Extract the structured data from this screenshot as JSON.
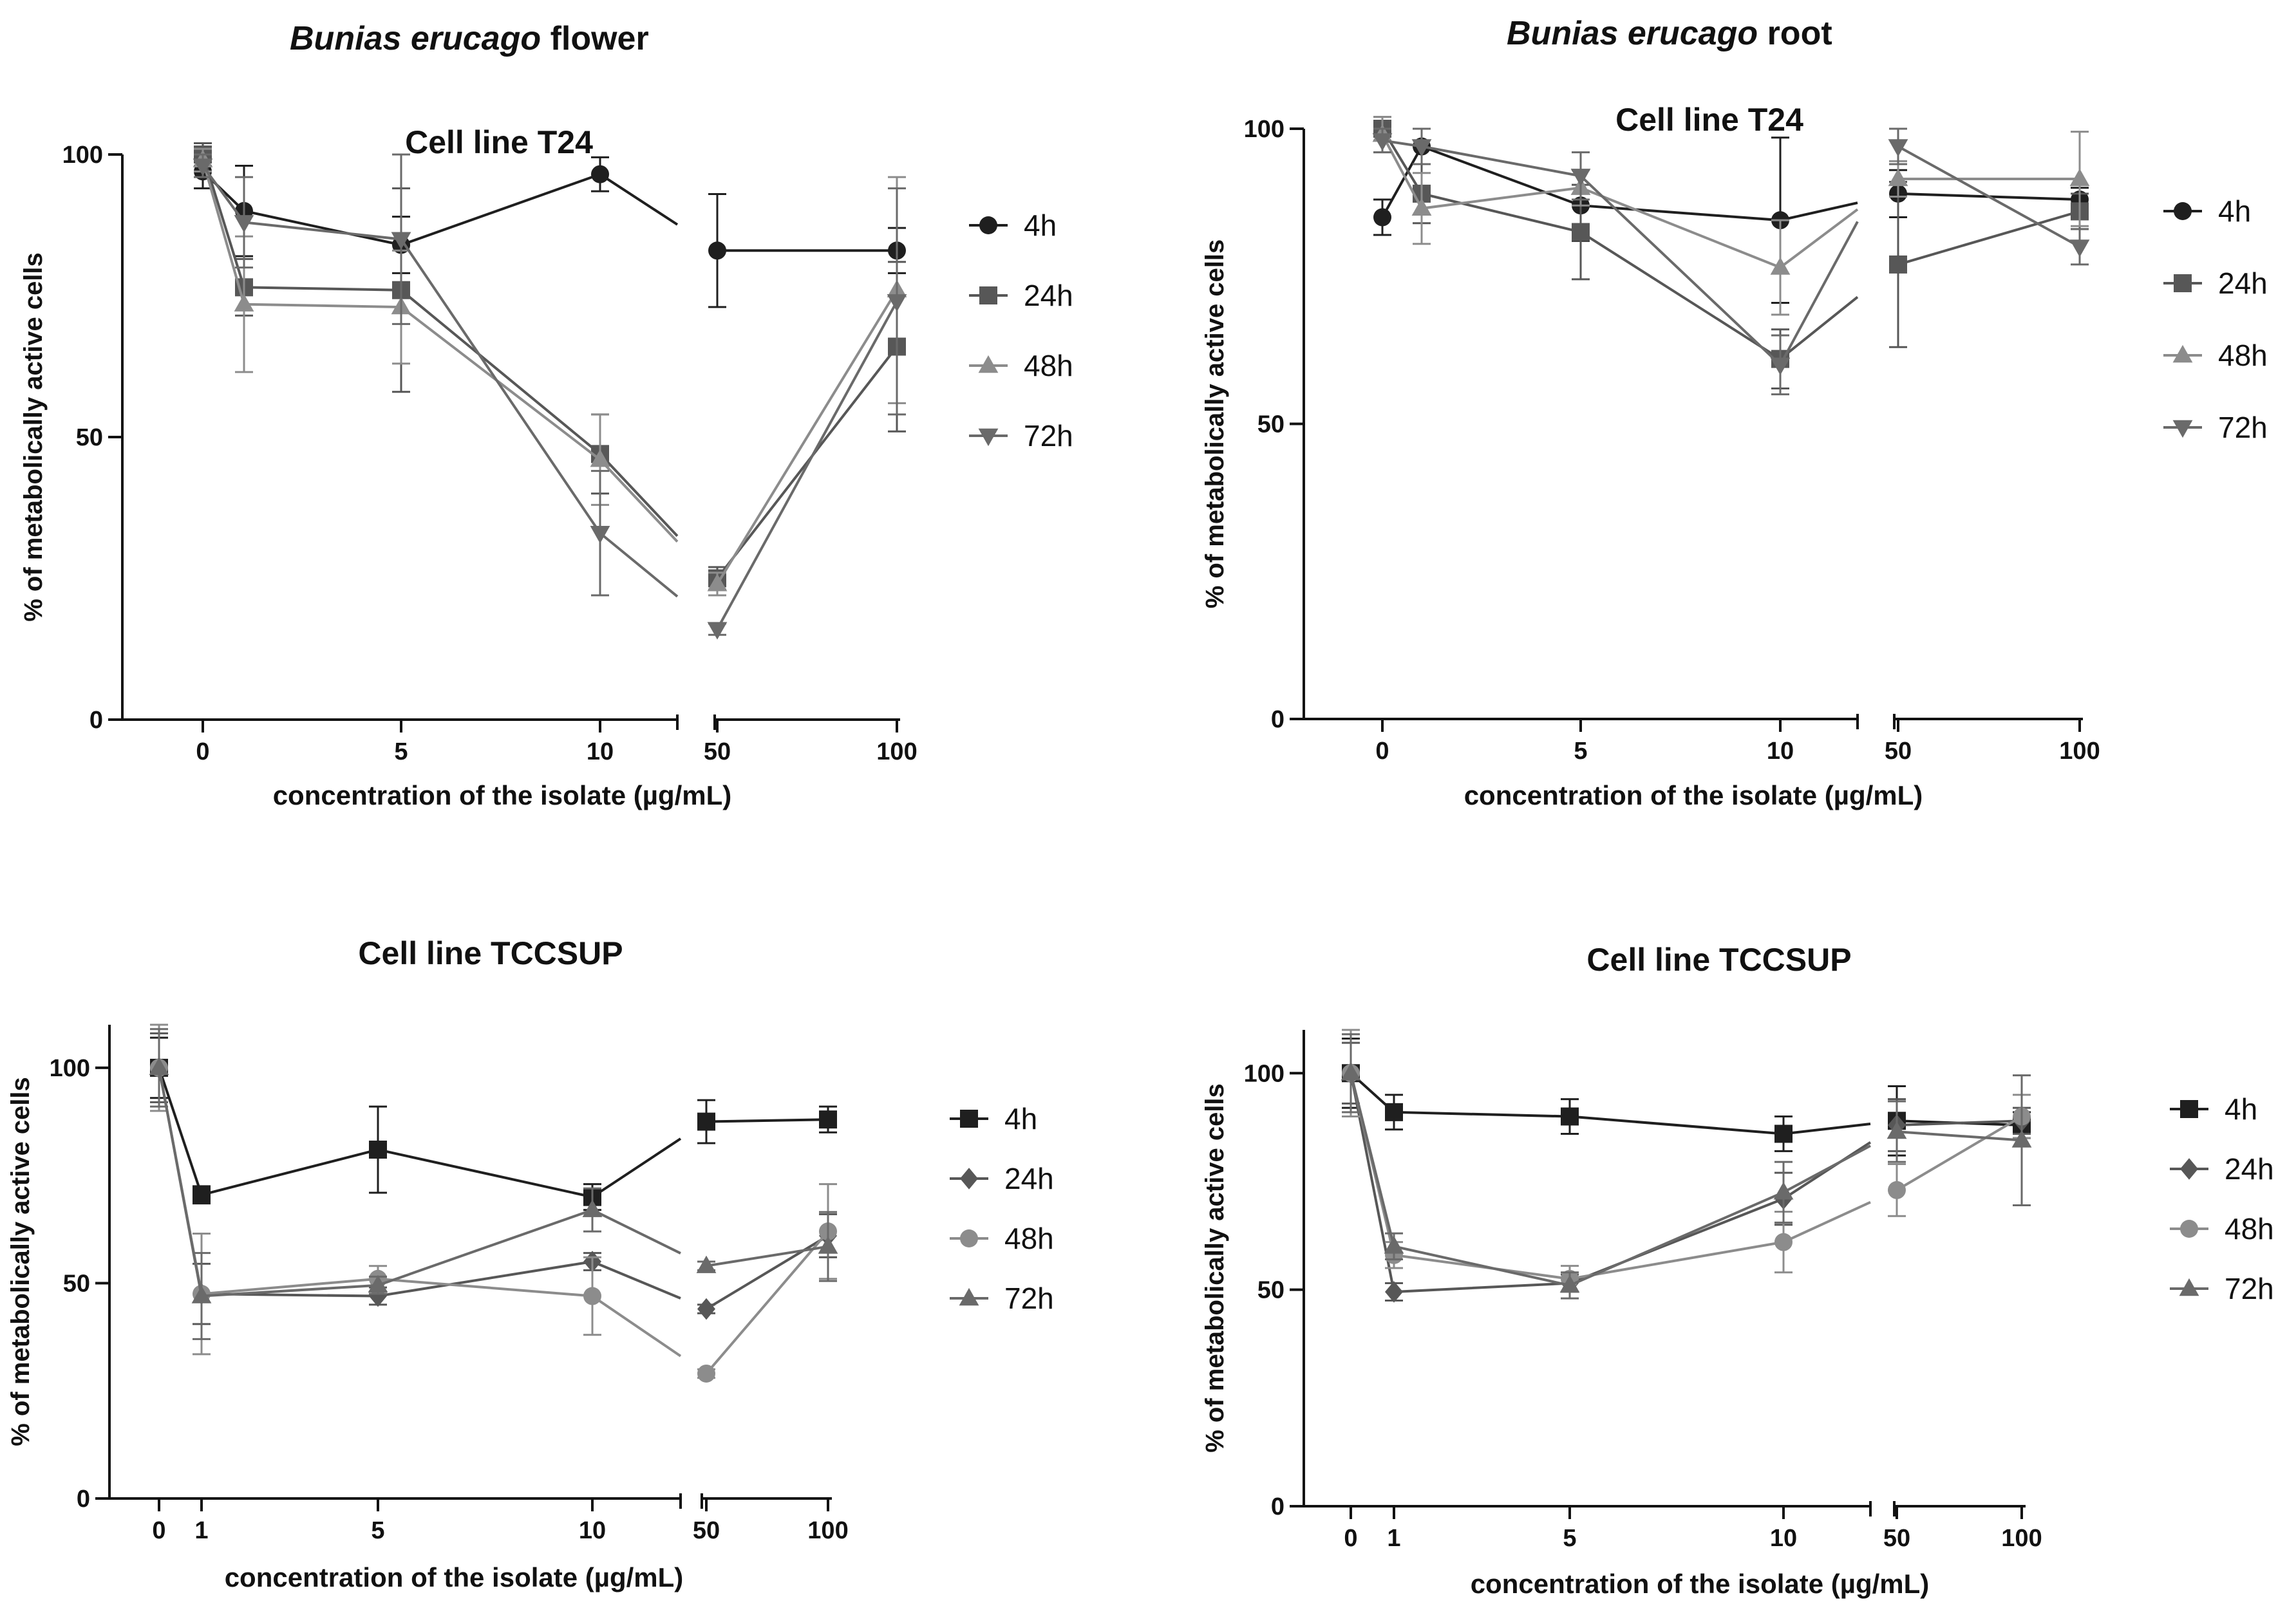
{
  "columns": [
    {
      "species": "Bunias erucago",
      "organ": "flower"
    },
    {
      "species": "Bunias erucago",
      "organ": "root"
    }
  ],
  "colors": {
    "4h": "#1f1f1f",
    "24h": "#575757",
    "48h": "#8c8c8c",
    "72h": "#6a6a6a",
    "axis": "#111111"
  },
  "chart_data": [
    {
      "type": "line",
      "title": "Cell line T24",
      "column": "flower",
      "xlabel": "concentration of the isolate (µg/mL)",
      "ylabel": "% of metabolically active cells",
      "categories": [
        "0",
        "1",
        "5",
        "10",
        "50",
        "100"
      ],
      "tick_labels": [
        "0",
        "5",
        "10",
        "50",
        "100"
      ],
      "yticks": [
        "0",
        "50",
        "100"
      ],
      "ylim": [
        0,
        100
      ],
      "axis_break_between": [
        "10",
        "50"
      ],
      "series": [
        {
          "name": "4h",
          "marker": "circle",
          "values": [
            97,
            90,
            84,
            96.5,
            83,
            83
          ],
          "errors": [
            3,
            8,
            5,
            3,
            10,
            4
          ]
        },
        {
          "name": "24h",
          "marker": "square",
          "values": [
            100,
            76.5,
            76,
            47,
            25,
            66
          ],
          "errors": [
            2,
            5,
            18,
            7,
            2,
            15
          ]
        },
        {
          "name": "48h",
          "marker": "triangle-up",
          "values": [
            99,
            73.5,
            73,
            46,
            24,
            76
          ],
          "errors": [
            2,
            12,
            10,
            8,
            2,
            20
          ]
        },
        {
          "name": "72h",
          "marker": "triangle-down",
          "values": [
            98,
            88,
            85,
            33,
            16,
            74
          ],
          "errors": [
            2,
            8,
            15,
            11,
            1,
            20
          ]
        }
      ]
    },
    {
      "type": "line",
      "title": "Cell line T24",
      "column": "root",
      "xlabel": "concentration of the isolate (µg/mL)",
      "ylabel": "% of metabolically active cells",
      "categories": [
        "0",
        "1",
        "5",
        "10",
        "50",
        "100"
      ],
      "tick_labels": [
        "0",
        "5",
        "10",
        "50",
        "100"
      ],
      "yticks": [
        "0",
        "50",
        "100"
      ],
      "ylim": [
        0,
        100
      ],
      "axis_break_between": [
        "10",
        "50"
      ],
      "series": [
        {
          "name": "4h",
          "marker": "circle",
          "values": [
            85,
            97,
            87,
            84.5,
            89,
            88
          ],
          "errors": [
            3,
            3,
            6,
            14,
            4,
            2
          ]
        },
        {
          "name": "24h",
          "marker": "square",
          "values": [
            100,
            89,
            82.5,
            61,
            77,
            86
          ],
          "errors": [
            2,
            5,
            8,
            5,
            14,
            3
          ]
        },
        {
          "name": "48h",
          "marker": "triangle-up",
          "values": [
            99,
            86.5,
            90,
            76.5,
            91.5,
            91.5
          ],
          "errors": [
            3,
            6,
            3,
            8,
            3,
            8
          ]
        },
        {
          "name": "72h",
          "marker": "triangle-down",
          "values": [
            98,
            97,
            92,
            60,
            97,
            80
          ],
          "errors": [
            2,
            3,
            4,
            5,
            3,
            3
          ]
        }
      ]
    },
    {
      "type": "line",
      "title": "Cell line TCCSUP",
      "column": "flower",
      "xlabel": "concentration of the isolate (µg/mL)",
      "ylabel": "% of metabolically active cells",
      "categories": [
        "0",
        "1",
        "5",
        "10",
        "50",
        "100"
      ],
      "tick_labels": [
        "0",
        "1",
        "5",
        "10",
        "50",
        "100"
      ],
      "yticks": [
        "0",
        "50",
        "100"
      ],
      "ylim": [
        0,
        110
      ],
      "axis_break_between": [
        "10",
        "50"
      ],
      "series": [
        {
          "name": "4h",
          "marker": "square",
          "values": [
            100,
            70.5,
            81,
            70,
            87.5,
            88
          ],
          "errors": [
            7,
            2,
            10,
            3,
            5,
            3
          ]
        },
        {
          "name": "24h",
          "marker": "diamond",
          "values": [
            100,
            47.5,
            47,
            55,
            44,
            61
          ],
          "errors": [
            8,
            7,
            2,
            2,
            1,
            5
          ]
        },
        {
          "name": "48h",
          "marker": "circle",
          "values": [
            100,
            47.5,
            51,
            47,
            29,
            62
          ],
          "errors": [
            10,
            14,
            3,
            9,
            1,
            11
          ]
        },
        {
          "name": "72h",
          "marker": "triangle-up",
          "values": [
            100,
            47,
            49.5,
            67,
            54,
            58.5
          ],
          "errors": [
            9,
            10,
            2,
            5,
            1,
            8
          ]
        }
      ]
    },
    {
      "type": "line",
      "title": "Cell line TCCSUP",
      "column": "root",
      "xlabel": "concentration of the isolate (µg/mL)",
      "ylabel": "% of metabolically active cells",
      "categories": [
        "0",
        "1",
        "5",
        "10",
        "50",
        "100"
      ],
      "tick_labels": [
        "0",
        "1",
        "5",
        "10",
        "50",
        "100"
      ],
      "yticks": [
        "0",
        "50",
        "100"
      ],
      "ylim": [
        0,
        110
      ],
      "axis_break_between": [
        "10",
        "50"
      ],
      "series": [
        {
          "name": "4h",
          "marker": "square",
          "values": [
            100,
            91,
            90,
            86,
            89,
            88
          ],
          "errors": [
            8,
            4,
            4,
            4,
            8,
            3
          ]
        },
        {
          "name": "24h",
          "marker": "diamond",
          "values": [
            100,
            49.5,
            51.5,
            71,
            88,
            89
          ],
          "errors": [
            7,
            2,
            2,
            6,
            6,
            3
          ]
        },
        {
          "name": "48h",
          "marker": "circle",
          "values": [
            100,
            58,
            52.5,
            61,
            73,
            90
          ],
          "errors": [
            10,
            3,
            3,
            7,
            6,
            5
          ]
        },
        {
          "name": "72h",
          "marker": "triangle-up",
          "values": [
            100,
            60,
            51,
            72.5,
            86.5,
            84.5
          ],
          "errors": [
            9,
            3,
            3,
            7,
            7,
            15
          ]
        }
      ]
    }
  ]
}
